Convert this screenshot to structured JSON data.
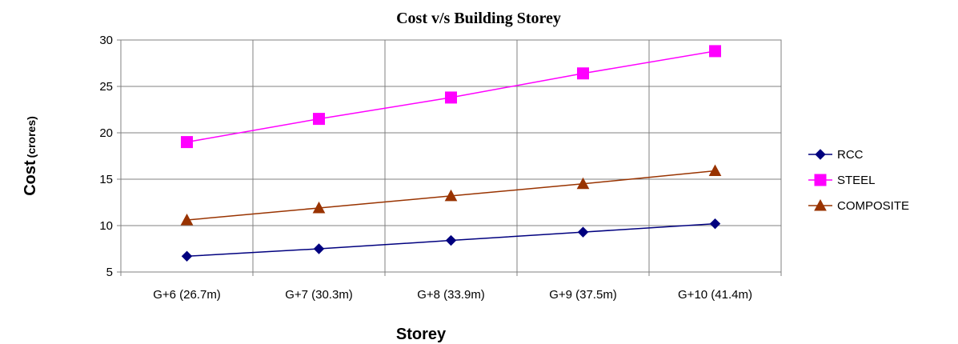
{
  "chart_data": {
    "type": "line",
    "title": "Cost v/s Building Storey",
    "xlabel": "Storey",
    "ylabel": "Cost",
    "ylabel_unit": "(crores)",
    "categories": [
      "G+6 (26.7m)",
      "G+7 (30.3m)",
      "G+8 (33.9m)",
      "G+9 (37.5m)",
      "G+10 (41.4m)"
    ],
    "ylim": [
      5,
      30
    ],
    "yticks": [
      5,
      10,
      15,
      20,
      25,
      30
    ],
    "grid": true,
    "legend_position": "right",
    "series": [
      {
        "name": "RCC",
        "values": [
          6.7,
          7.5,
          8.4,
          9.3,
          10.2
        ],
        "color": "#00007f",
        "marker": "diamond"
      },
      {
        "name": "STEEL",
        "values": [
          19.0,
          21.5,
          23.8,
          26.4,
          28.8
        ],
        "color": "#ff00ff",
        "marker": "square"
      },
      {
        "name": "COMPOSITE",
        "values": [
          10.6,
          11.9,
          13.2,
          14.5,
          15.9
        ],
        "color": "#993300",
        "marker": "triangle"
      }
    ]
  }
}
